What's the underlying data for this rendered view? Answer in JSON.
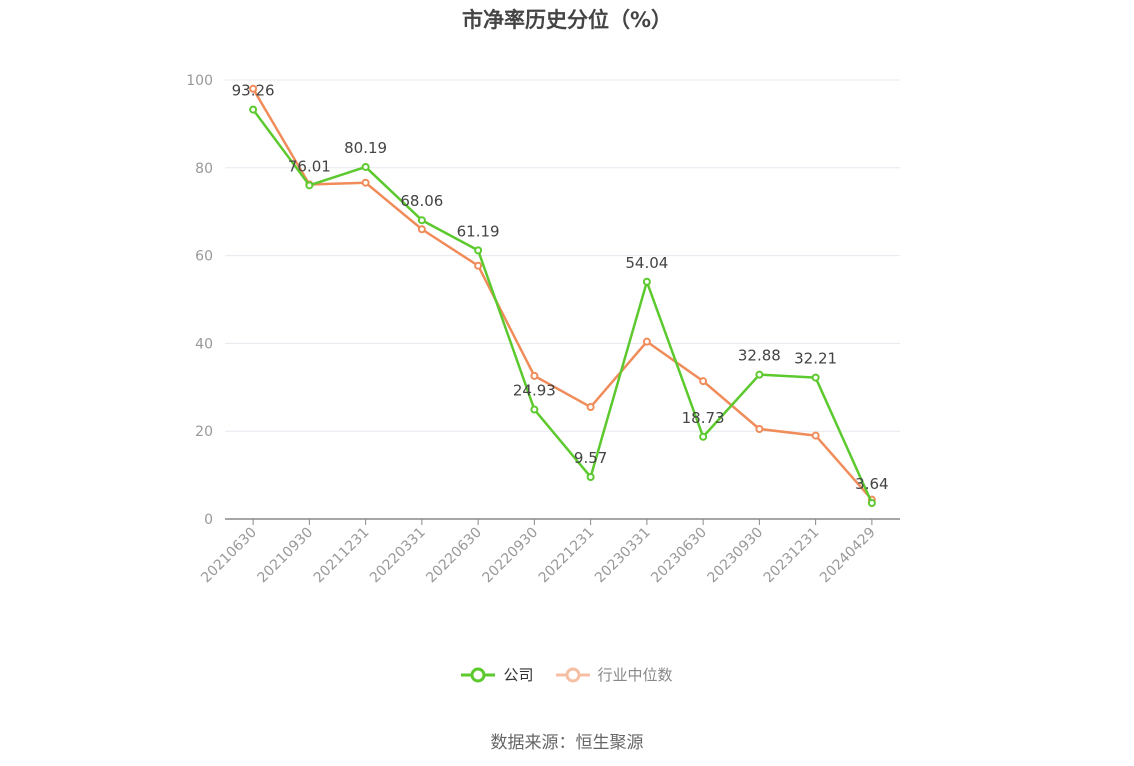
{
  "title": "市净率历史分位（%）",
  "source": "数据来源：恒生聚源",
  "colors": {
    "company": "#5cc92e",
    "industry": "#f08c5a",
    "grid": "#e6e8ef",
    "axis": "#999999"
  },
  "chart_data": {
    "type": "line",
    "title": "市净率历史分位（%）",
    "x": [
      "20210630",
      "20210930",
      "20211231",
      "20220331",
      "20220630",
      "20220930",
      "20221231",
      "20230331",
      "20230630",
      "20230930",
      "20231231",
      "20240429"
    ],
    "yticks": [
      "0",
      "20",
      "40",
      "60",
      "80",
      "100"
    ],
    "ylim": [
      0,
      100
    ],
    "grid": true,
    "legend_position": "bottom",
    "series": [
      {
        "name": "公司",
        "values": [
          93.26,
          76.01,
          80.19,
          68.06,
          61.19,
          24.93,
          9.57,
          54.04,
          18.73,
          32.88,
          32.21,
          3.64
        ],
        "labels": [
          "93.26",
          "76.01",
          "80.19",
          "68.06",
          "61.19",
          "24.93",
          "9.57",
          "54.04",
          "18.73",
          "32.88",
          "32.21",
          "3.64"
        ]
      },
      {
        "name": "行业中位数",
        "values": [
          98.0,
          76.2,
          76.6,
          66.0,
          57.7,
          32.6,
          25.5,
          40.4,
          31.4,
          20.5,
          19.0,
          4.4
        ]
      }
    ]
  }
}
